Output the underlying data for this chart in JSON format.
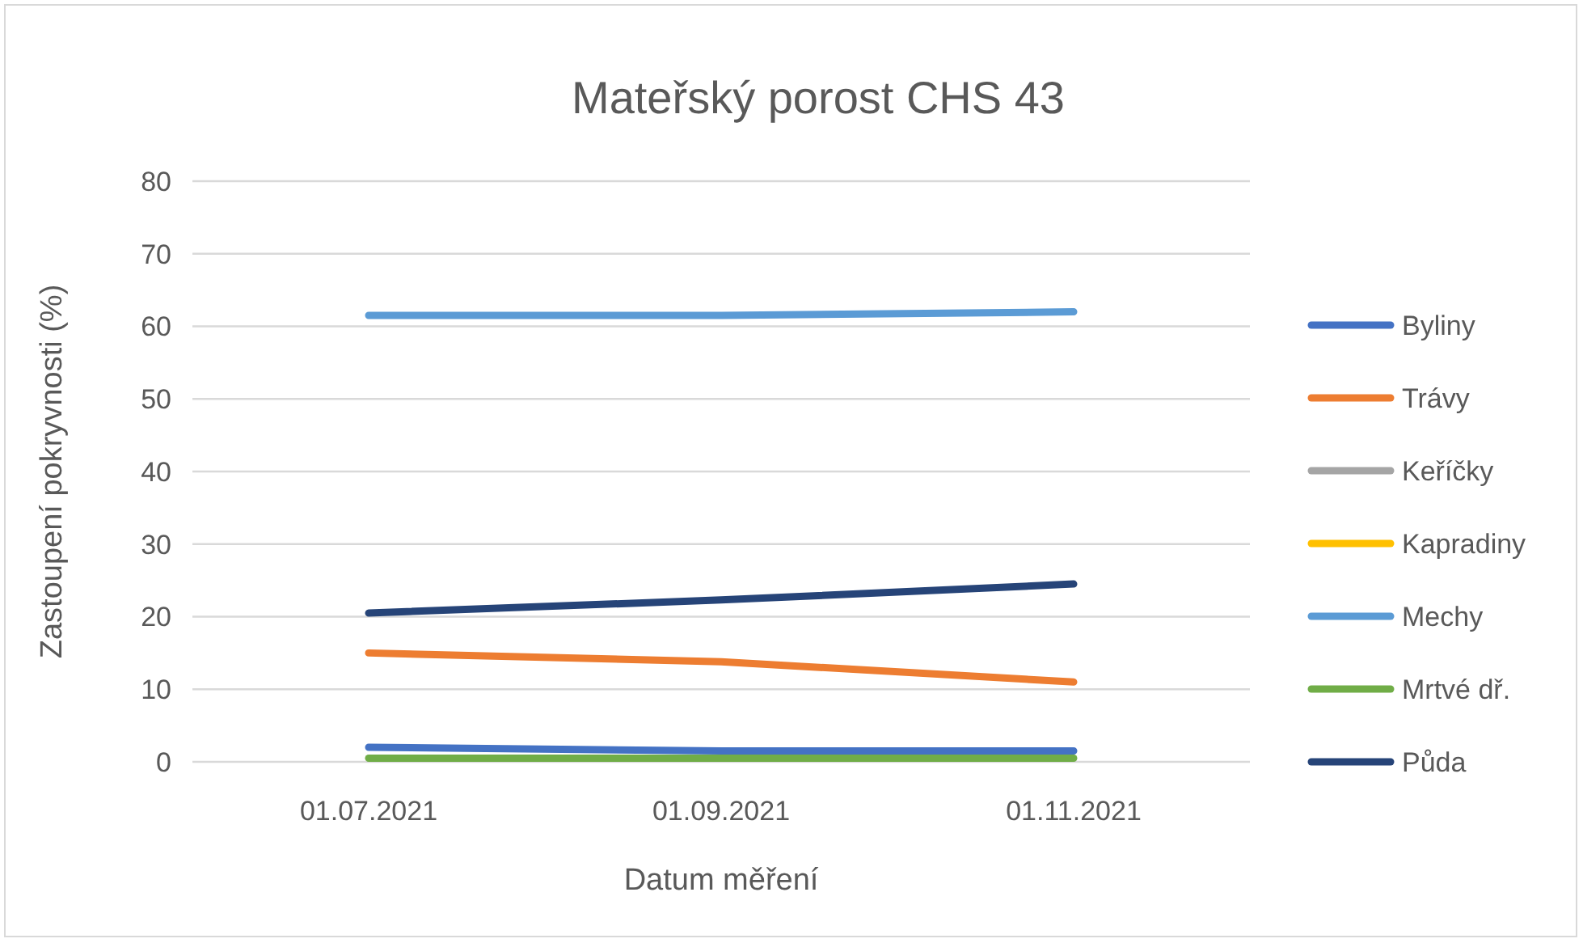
{
  "chart_data": {
    "type": "line",
    "title": "Mateřský porost CHS 43",
    "xlabel": "Datum měření",
    "ylabel": "Zastoupení pokryvnosti (%)",
    "categories": [
      "01.07.2021",
      "01.09.2021",
      "01.11.2021"
    ],
    "ylim": [
      0,
      80
    ],
    "yticks": [
      0,
      10,
      20,
      30,
      40,
      50,
      60,
      70,
      80
    ],
    "grid": "y",
    "legend": "right",
    "marker": "none",
    "line_style": "solid",
    "series": [
      {
        "name": "Byliny",
        "color": "#4472c4",
        "values": [
          2,
          1.5,
          1.5
        ]
      },
      {
        "name": "Trávy",
        "color": "#ed7d31",
        "values": [
          15,
          13.8,
          11
        ]
      },
      {
        "name": "Keříčky",
        "color": "#a5a5a5",
        "values": [
          null,
          null,
          null
        ]
      },
      {
        "name": "Kapradiny",
        "color": "#ffc000",
        "values": [
          null,
          null,
          null
        ]
      },
      {
        "name": "Mechy",
        "color": "#5b9bd5",
        "values": [
          61.5,
          61.5,
          62
        ]
      },
      {
        "name": "Mrtvé dř.",
        "color": "#70ad47",
        "values": [
          0.5,
          0.5,
          0.5
        ]
      },
      {
        "name": "Půda",
        "color": "#264478",
        "values": [
          20.5,
          22.3,
          24.5
        ]
      }
    ]
  }
}
